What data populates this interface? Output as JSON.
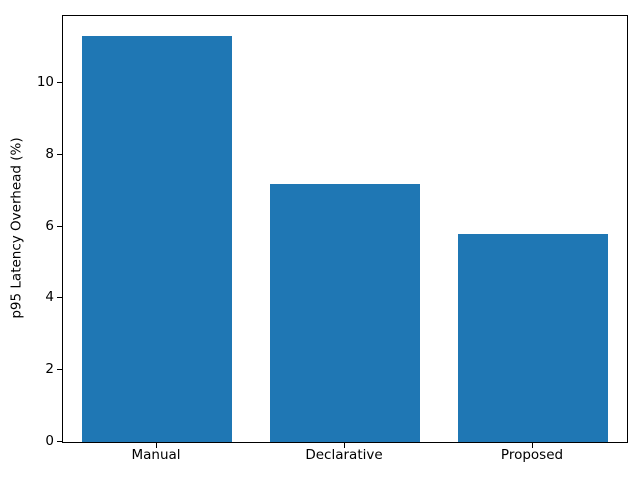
{
  "figure": {
    "background_color": "#ffffff",
    "axis_color": "#000000",
    "text_color": "#000000"
  },
  "chart_data": {
    "type": "bar",
    "title": "",
    "categories": [
      "Manual",
      "Declarative",
      "Proposed"
    ],
    "values": [
      11.3,
      7.2,
      5.8
    ],
    "xlabel": "",
    "ylabel": "p95 Latency Overhead (%)",
    "ylim": [
      0,
      11.87
    ],
    "yticks": [
      0,
      2,
      4,
      6,
      8,
      10
    ],
    "bar_color": "#1f77b4",
    "bar_width_fraction": 0.8,
    "grid": false,
    "legend": "none"
  }
}
